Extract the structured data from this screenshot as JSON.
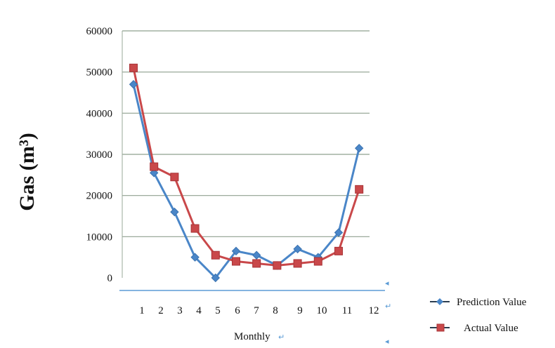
{
  "chart_data": {
    "type": "line",
    "title": "",
    "xlabel": "Monthly",
    "ylabel": "Gas (m³)",
    "x": [
      1,
      2,
      3,
      4,
      5,
      6,
      7,
      8,
      9,
      10,
      11,
      12
    ],
    "x_tick_labels": [
      "1",
      "2",
      "3",
      "4",
      "5",
      "6",
      "7",
      "8",
      "9",
      "10",
      "11",
      "12"
    ],
    "yticks": [
      0,
      10000,
      20000,
      30000,
      40000,
      50000,
      60000
    ],
    "y_tick_labels": [
      "0",
      "10000",
      "20000",
      "30000",
      "40000",
      "50000",
      "60000"
    ],
    "ylim": [
      0,
      60000
    ],
    "grid": true,
    "legend_position": "bottom-right",
    "series": [
      {
        "name": "Prediction Value",
        "color": "#4a86c8",
        "marker": "diamond",
        "values": [
          47000,
          25500,
          16000,
          5000,
          0,
          6500,
          5500,
          3000,
          7000,
          5000,
          11000,
          31500
        ]
      },
      {
        "name": "Actual Value",
        "color": "#c9484a",
        "marker": "square",
        "values": [
          51000,
          27000,
          24500,
          12000,
          5500,
          4000,
          3500,
          3000,
          3500,
          4000,
          6500,
          21500
        ]
      }
    ],
    "return_marks": [
      "↵",
      "↵"
    ]
  }
}
